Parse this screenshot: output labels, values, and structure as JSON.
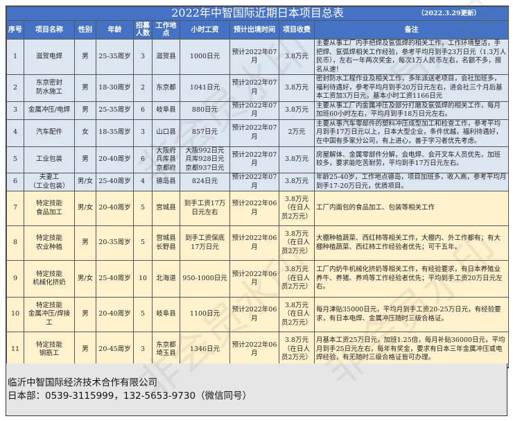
{
  "title": "2022年中智国际近期日本项目总表",
  "updated": "（2022.3.29更新）",
  "headers": [
    "序号",
    "项目名称",
    "性别",
    "年龄",
    "招募人数",
    "工作地点",
    "小时工资",
    "预计出境时间",
    "项目收费",
    "备注"
  ],
  "rows": [
    {
      "no": "1",
      "name": "滋贺电焊",
      "gender": "男",
      "age": "25-35周岁",
      "count": "3",
      "location": "滋贺县",
      "wage": "1000日元",
      "depart": "预计2022年07月",
      "fee": "3.8万元",
      "note": "主要从事工厂内手把焊及氩弧焊的相关工作，工作环境整洁，手把焊、氩弧焊相关工作经验，参考平均月到手23万日元（1.3万人民币），左右一年两次奖金，每次1万人民币左右，名额不多，报名从速！",
      "color": "blue"
    },
    {
      "no": "2",
      "name": "东京密封\n防水施工",
      "gender": "男",
      "age": "18-30周岁",
      "count": "2",
      "location": "东京都",
      "wage": "1041日元",
      "depart": "预计2022年07月",
      "fee": "3.8万元",
      "note": "密封防水工程作业及相关工作，多年派送老项目，会社加班多，福利待遇好，参考平均月到手20万日元左右，进会社三个月后基本工资加3万日元，基本小时工资1166日元",
      "color": "blue"
    },
    {
      "no": "3",
      "name": "金属冲压/电焊",
      "gender": "男",
      "age": "25-35周岁",
      "count": "6",
      "location": "岐阜县",
      "wage": "880日元",
      "depart": "预计2022年07月",
      "fee": "3.8万元",
      "note": "主要从事工厂内金属冲压及部分打磨及氩弧焊的相关工作，每月加班60小时左右，平均月到手18万日元左右。",
      "color": "blue"
    },
    {
      "no": "4",
      "name": "汽车配件",
      "gender": "女",
      "age": "18-35周岁",
      "count": "3",
      "location": "山口县",
      "wage": "857日元",
      "depart": "预计2022年07月",
      "fee": "2万元",
      "note": "主要从事汽车零部件的塑料冲压成型加工和检查工作，参考平均月到手17万日元以上，日本大型企业，条件优越，福利待遇好，在中国有多家分公司，有上进心，善于学习者优先考虑。",
      "color": "blue"
    },
    {
      "no": "5",
      "name": "工业包装",
      "gender": "男",
      "age": "20-40周岁",
      "count": "6",
      "location": "大阪府\n兵库县\n京都府",
      "wage": "大阪992日元\n兵库928日元\n京都937日元",
      "depart": "预计2022年07月",
      "fee": "3.8万元",
      "note": "房屋解体、金属零部件分解，会电焊、会开叉车人员优先，加班较多，要求能吃苦耐劳，平均到手17万日元左右。",
      "color": "blue"
    },
    {
      "no": "6",
      "name": "夫妻工\n（工业包装）",
      "gender": "男/女",
      "age": "25-40周岁",
      "count": "4",
      "location": "德岛县",
      "wage": "824日元",
      "depart": "预计2022年07月",
      "fee": "3.8万元",
      "note": "年龄25-40岁，工作地点德岛，项目加班多，收入高，参考平均月到手17-20万日元，优质项目。",
      "color": "blue"
    },
    {
      "no": "7",
      "name": "特定技能\n食品加工",
      "gender": "男/女",
      "age": "20-40周岁",
      "count": "5",
      "location": "宫城县",
      "wage": "到手工资17万\n日元左右",
      "depart": "预计2022年06月",
      "fee": "3.8万元（在日人员2万元）",
      "note": "工厂内面包的食品加工、包装等相关工作",
      "color": "yellow"
    },
    {
      "no": "8",
      "name": "特定技能\n农业种植",
      "gender": "男",
      "age": "20-35周岁",
      "count": "5",
      "location": "宫城县\n长野县",
      "wage": "到手工资保底\n17万日元",
      "depart": "预计2022年06月",
      "fee": "3.8万元（在日人员2万元）",
      "note": "大棚种植蔬菜、西红柿等相关工作，大棚内、外工作都有；有大棚种植蔬菜、西红柿工作经验者优先；可干五年。",
      "color": "yellow"
    },
    {
      "no": "9",
      "name": "特定技能\n机械化挤奶",
      "gender": "男/女",
      "age": "25-40周岁",
      "count": "10",
      "location": "北海道",
      "wage": "950-1000日元",
      "depart": "预计2022年06月",
      "fee": "3.8万元（在日人员2万元）",
      "note": "工厂内奶牛机械化挤奶等相关工作，有经验要求，有日本养殖业养牛、养猪、养鸡等工作经验者优先；平均到手工资20万日元左右。",
      "color": "yellow"
    },
    {
      "no": "10",
      "name": "特定技能\n金属冲压/焊接\n工",
      "gender": "男",
      "age": "20-40周岁",
      "count": "5",
      "location": "岐阜县",
      "wage": "1100日元",
      "depart": "预计2022年06月",
      "fee": "3.8万元（在日人员2万元）",
      "note": "每月津贴35000日元，平均月到手工资20-25万日元，有经验要求，有日本电焊、金属冲压随时三级合格证。",
      "color": "yellow"
    },
    {
      "no": "11",
      "name": "特定技能\n钢筋工",
      "gender": "男",
      "age": "20-45周岁",
      "count": "3",
      "location": "东京都\n埼玉县",
      "wage": "1346日元",
      "depart": "预计2022年06月",
      "fee": "3.8万元（在日人员2万元）",
      "note": "月基本工资25万日元，加班1.25倍，每月补贴36000日元，平均月到手25日元左右，每年有奖金，要求有日本三年金属冲压或电焊经验，有无随时三级合格证皆可办理。",
      "color": "yellow"
    }
  ],
  "footer": {
    "company": "临沂中智国际经济技术合作有限公司",
    "contact": "日本部：0539-3115999，132-5653-9730（微信同号）"
  },
  "watermark": "非会员水印",
  "colors": {
    "header": "#4472c4",
    "row_blue": "#dce6f1",
    "row_yellow": "#fff2cc",
    "footer": "#e6e6e6"
  }
}
